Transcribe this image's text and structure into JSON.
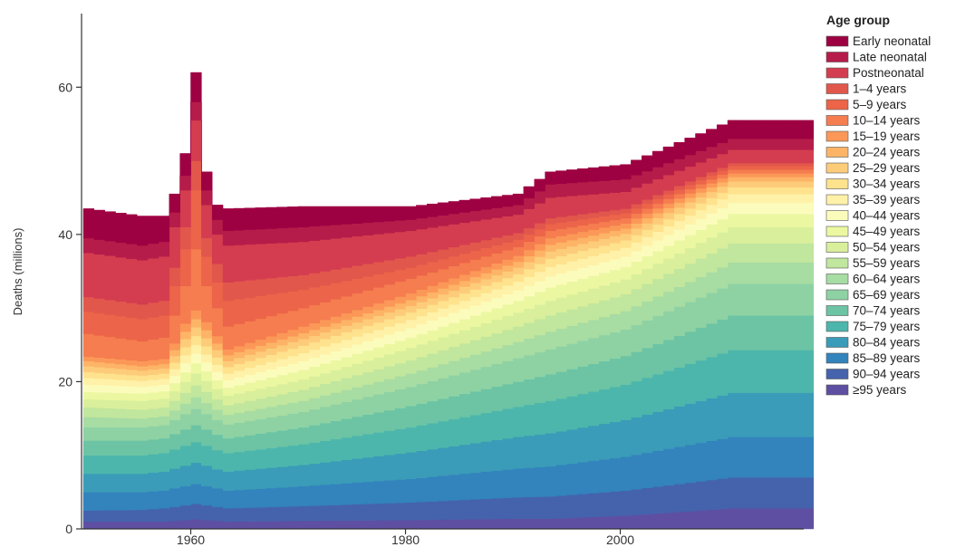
{
  "chart_data": {
    "type": "area",
    "stacked": true,
    "ylabel": "Deaths (millions)",
    "xlim": [
      1950,
      2017
    ],
    "ylim": [
      0,
      70
    ],
    "x_ticks": [
      1960,
      1980,
      2000
    ],
    "x_tick_labels": [
      "1960",
      "1980",
      "2000"
    ],
    "y_ticks": [
      0,
      20,
      40,
      60
    ],
    "y_tick_labels": [
      "0",
      "20",
      "40",
      "60"
    ],
    "legend_title": "Age group",
    "legend_placement": "right",
    "series": [
      {
        "name": "≥95 years",
        "color": "#5e4fa2"
      },
      {
        "name": "90–94 years",
        "color": "#4563ad"
      },
      {
        "name": "85–89 years",
        "color": "#3383bd"
      },
      {
        "name": "80–84 years",
        "color": "#3a9cb8"
      },
      {
        "name": "75–79 years",
        "color": "#4db6ac"
      },
      {
        "name": "70–74 years",
        "color": "#6cc4a4"
      },
      {
        "name": "65–69 years",
        "color": "#8ed2a4"
      },
      {
        "name": "60–64 years",
        "color": "#a7dca3"
      },
      {
        "name": "55–59 years",
        "color": "#c1e69d"
      },
      {
        "name": "50–54 years",
        "color": "#d9ef9b"
      },
      {
        "name": "45–49 years",
        "color": "#ecf7a2"
      },
      {
        "name": "40–44 years",
        "color": "#fbfcbc"
      },
      {
        "name": "35–39 years",
        "color": "#fff1a8"
      },
      {
        "name": "30–34 years",
        "color": "#fee28d"
      },
      {
        "name": "25–29 years",
        "color": "#fdcc7a"
      },
      {
        "name": "20–24 years",
        "color": "#fdb467"
      },
      {
        "name": "15–19 years",
        "color": "#fb9858"
      },
      {
        "name": "10–14 years",
        "color": "#f57d4f"
      },
      {
        "name": "5–9 years",
        "color": "#ec6449"
      },
      {
        "name": "1–4 years",
        "color": "#e2574c"
      },
      {
        "name": "Postneonatal",
        "color": "#d43d4f"
      },
      {
        "name": "Late neonatal",
        "color": "#b61c49"
      },
      {
        "name": "Early neonatal",
        "color": "#9e0142"
      }
    ],
    "anchor_years": [
      1950,
      1955,
      1957,
      1958,
      1959,
      1960,
      1961,
      1962,
      1963,
      1970,
      1980,
      1990,
      1993,
      2000,
      2010,
      2017
    ],
    "cumulative_upper_bounds": [
      [
        1.0,
        2.5,
        5.0,
        7.5,
        10.0,
        12.0,
        13.8,
        15.2,
        16.5,
        17.6,
        18.6,
        19.6,
        20.5,
        21.3,
        22.1,
        22.8,
        23.4,
        26.5,
        29.5,
        31.5,
        37.5,
        39.5,
        43.5
      ],
      [
        1.0,
        2.6,
        5.0,
        7.5,
        10.0,
        12.0,
        13.8,
        15.0,
        16.2,
        17.4,
        18.4,
        19.3,
        20.1,
        20.8,
        21.5,
        22.1,
        22.8,
        25.5,
        28.5,
        30.5,
        36.5,
        38.5,
        42.5
      ],
      [
        1.0,
        2.8,
        5.2,
        7.8,
        10.3,
        12.3,
        14.1,
        15.3,
        16.5,
        17.7,
        18.7,
        19.6,
        20.4,
        21.1,
        21.8,
        22.4,
        23.1,
        26.0,
        29.0,
        31.0,
        37.0,
        39.0,
        42.5
      ],
      [
        1.1,
        3.0,
        5.5,
        8.2,
        10.8,
        12.9,
        14.8,
        16.1,
        17.4,
        18.7,
        19.8,
        20.8,
        21.7,
        22.6,
        23.5,
        24.3,
        25.2,
        29.0,
        33.0,
        35.5,
        41.0,
        43.0,
        45.5
      ],
      [
        1.2,
        3.2,
        5.8,
        8.6,
        11.3,
        13.5,
        15.6,
        17.0,
        18.5,
        20.0,
        21.3,
        22.5,
        23.6,
        24.7,
        25.8,
        26.8,
        27.9,
        33.0,
        38.0,
        41.0,
        46.0,
        48.0,
        51.0
      ],
      [
        1.3,
        3.4,
        6.1,
        9.0,
        11.8,
        14.1,
        16.3,
        17.9,
        19.5,
        21.1,
        22.5,
        23.8,
        25.0,
        26.2,
        27.4,
        28.5,
        29.7,
        38.0,
        46.0,
        50.0,
        55.5,
        58.0,
        62.0
      ],
      [
        1.2,
        3.2,
        5.8,
        8.6,
        11.3,
        13.5,
        15.6,
        17.1,
        18.6,
        20.1,
        21.4,
        22.6,
        23.7,
        24.8,
        25.9,
        27.0,
        28.1,
        33.0,
        37.0,
        39.5,
        44.0,
        46.0,
        48.5
      ],
      [
        1.1,
        3.0,
        5.5,
        8.1,
        10.7,
        12.8,
        14.8,
        16.2,
        17.6,
        19.0,
        20.2,
        21.3,
        22.3,
        23.3,
        24.3,
        25.2,
        26.2,
        30.0,
        33.5,
        36.0,
        40.0,
        42.0,
        44.0
      ],
      [
        1.0,
        2.8,
        5.2,
        7.8,
        10.3,
        12.3,
        14.2,
        15.5,
        16.8,
        18.1,
        19.2,
        20.2,
        21.1,
        22.0,
        22.8,
        23.6,
        24.4,
        27.5,
        31.0,
        33.5,
        38.5,
        40.5,
        43.5
      ],
      [
        1.1,
        3.1,
        5.8,
        8.7,
        11.5,
        13.8,
        15.9,
        17.4,
        18.9,
        20.3,
        21.6,
        22.8,
        23.9,
        24.9,
        25.8,
        26.6,
        27.5,
        30.0,
        32.5,
        34.5,
        39.0,
        41.0,
        43.8
      ],
      [
        1.2,
        3.6,
        6.8,
        10.4,
        13.8,
        16.7,
        19.3,
        21.1,
        22.9,
        24.6,
        26.0,
        27.3,
        28.4,
        29.4,
        30.3,
        31.1,
        32.0,
        34.0,
        35.5,
        37.0,
        40.5,
        42.0,
        43.8
      ],
      [
        1.4,
        4.3,
        8.2,
        12.5,
        16.6,
        20.0,
        23.2,
        25.4,
        27.5,
        29.4,
        31.0,
        32.4,
        33.6,
        34.6,
        35.5,
        36.3,
        37.1,
        38.3,
        39.3,
        40.2,
        42.7,
        44.0,
        45.5
      ],
      [
        1.4,
        4.4,
        8.5,
        13.0,
        17.4,
        21.0,
        24.4,
        26.8,
        29.0,
        31.0,
        32.8,
        34.3,
        35.6,
        36.7,
        37.7,
        38.6,
        39.5,
        40.5,
        41.4,
        42.2,
        45.0,
        46.8,
        48.5
      ],
      [
        1.8,
        5.2,
        9.8,
        14.8,
        19.6,
        23.5,
        27.1,
        29.6,
        31.9,
        33.9,
        35.6,
        37.0,
        38.2,
        39.2,
        40.1,
        40.8,
        41.5,
        42.2,
        42.9,
        43.5,
        45.8,
        47.5,
        49.5
      ],
      [
        2.8,
        7.0,
        12.5,
        18.5,
        24.3,
        29.0,
        33.3,
        36.2,
        38.8,
        41.0,
        42.8,
        44.3,
        45.5,
        46.4,
        47.2,
        47.8,
        48.3,
        48.8,
        49.3,
        49.7,
        51.5,
        53.0,
        55.5
      ],
      [
        2.8,
        7.0,
        12.5,
        18.5,
        24.3,
        29.0,
        33.3,
        36.2,
        38.8,
        41.0,
        42.8,
        44.3,
        45.5,
        46.4,
        47.2,
        47.8,
        48.3,
        48.8,
        49.3,
        49.7,
        51.5,
        53.0,
        55.5
      ]
    ]
  }
}
